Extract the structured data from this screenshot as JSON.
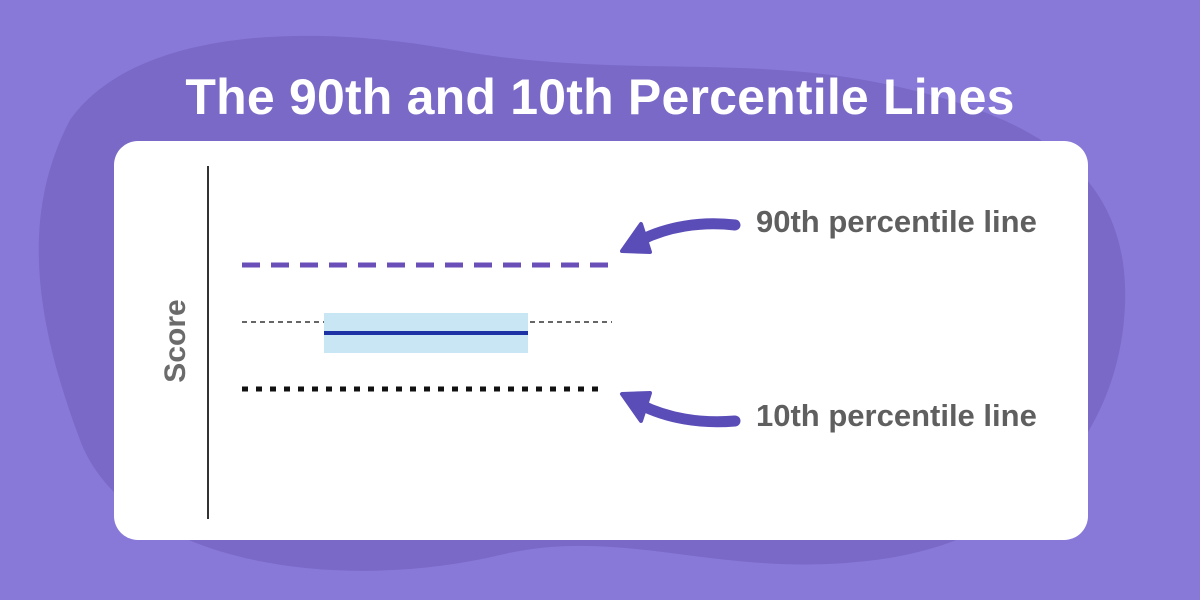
{
  "title": "The 90th and 10th Percentile Lines",
  "y_axis_label": "Score",
  "callouts": {
    "p90_label": "90th percentile line",
    "p10_label": "10th percentile line"
  },
  "colors": {
    "background": "#8878d8",
    "blob": "#7a69c6",
    "card": "#ffffff",
    "p90_line": "#6a4fb8",
    "p10_line": "#111111",
    "median_line": "#1d33a5",
    "band_fill": "#c9e6f4",
    "arrow": "#5a4db8",
    "callout_text": "#5f5f5f"
  },
  "icons": {
    "arrow_to_p90": "curved-arrow-left-icon",
    "arrow_to_p10": "curved-arrow-left-icon"
  }
}
